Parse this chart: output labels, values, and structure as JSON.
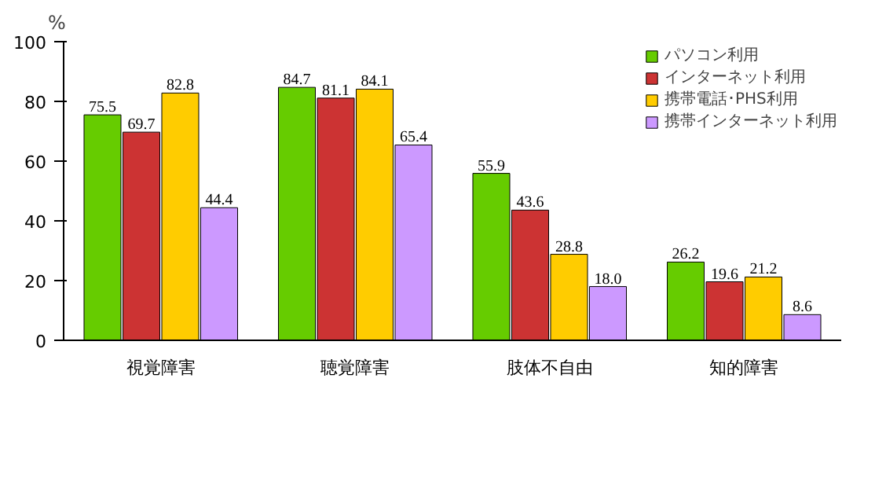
{
  "chart_data": {
    "type": "bar",
    "ylabel": "%",
    "categories": [
      "視覚障害",
      "聴覚障害",
      "肢体不自由",
      "知的障害"
    ],
    "series": [
      {
        "name": "パソコン利用",
        "color": "#66cc00",
        "values": [
          75.5,
          84.7,
          55.9,
          26.2
        ],
        "value_labels": [
          "75.5",
          "84.7",
          "55.9",
          "26.2"
        ]
      },
      {
        "name": "インターネット利用",
        "color": "#cc3333",
        "values": [
          69.7,
          81.1,
          43.6,
          19.6
        ],
        "value_labels": [
          "69.7",
          "81.1",
          "43.6",
          "19.6"
        ]
      },
      {
        "name": "携帯電話･PHS利用",
        "color": "#ffcc00",
        "values": [
          82.8,
          84.1,
          28.8,
          21.2
        ],
        "value_labels": [
          "82.8",
          "84.1",
          "28.8",
          "21.2"
        ]
      },
      {
        "name": "携帯インターネット利用",
        "color": "#cc99ff",
        "values": [
          44.4,
          65.4,
          18.0,
          8.6
        ],
        "value_labels": [
          "44.4",
          "65.4",
          "18.0",
          "8.6"
        ]
      }
    ],
    "ylim": [
      0,
      100
    ],
    "yticks": [
      0,
      20,
      40,
      60,
      80,
      100
    ],
    "grid": false,
    "legend": "top right"
  }
}
